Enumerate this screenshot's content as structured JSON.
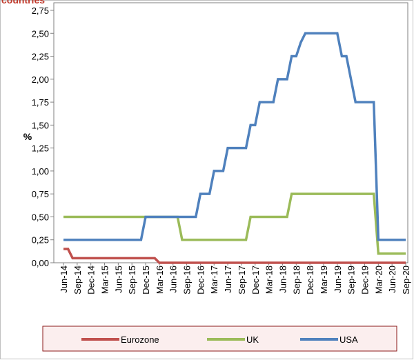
{
  "chart_data": {
    "type": "line",
    "title": "countries",
    "y_label": "%",
    "categories": [
      "Jun-14",
      null,
      null,
      "Sep-14",
      null,
      null,
      "Dec-14",
      null,
      null,
      "Mar-15",
      null,
      null,
      "Jun-15",
      null,
      null,
      "Sep-15",
      null,
      null,
      "Dec-15",
      null,
      null,
      "Mar-16",
      null,
      null,
      "Jun-16",
      null,
      null,
      "Sep-16",
      null,
      null,
      "Dec-16",
      null,
      null,
      "Mar-17",
      null,
      null,
      "Jun-17",
      null,
      null,
      "Sep-17",
      null,
      null,
      "Dec-17",
      null,
      null,
      "Mar-18",
      null,
      null,
      "Jun-18",
      null,
      null,
      "Sep-18",
      null,
      null,
      "Dec-18",
      null,
      null,
      "Mar-19",
      null,
      null,
      "Jun-19",
      null,
      null,
      "Sep-19",
      null,
      null,
      "Dec-19",
      null,
      null,
      "Mar-20",
      null,
      null,
      "Jun-20",
      null,
      null,
      "Sep-20"
    ],
    "series": [
      {
        "name": "Eurozone",
        "color": "#c0504d",
        "values": [
          0.15,
          0.15,
          0.05,
          0.05,
          0.05,
          0.05,
          0.05,
          0.05,
          0.05,
          0.05,
          0.05,
          0.05,
          0.05,
          0.05,
          0.05,
          0.05,
          0.05,
          0.05,
          0.05,
          0.05,
          0.05,
          0,
          0,
          0,
          0,
          0,
          0,
          0,
          0,
          0,
          0,
          0,
          0,
          0,
          0,
          0,
          0,
          0,
          0,
          0,
          0,
          0,
          0,
          0,
          0,
          0,
          0,
          0,
          0,
          0,
          0,
          0,
          0,
          0,
          0,
          0,
          0,
          0,
          0,
          0,
          0,
          0,
          0,
          0,
          0,
          0,
          0,
          0,
          0,
          0,
          0,
          0,
          0,
          0,
          0,
          0
        ]
      },
      {
        "name": "UK",
        "color": "#9bbb59",
        "values": [
          0.5,
          0.5,
          0.5,
          0.5,
          0.5,
          0.5,
          0.5,
          0.5,
          0.5,
          0.5,
          0.5,
          0.5,
          0.5,
          0.5,
          0.5,
          0.5,
          0.5,
          0.5,
          0.5,
          0.5,
          0.5,
          0.5,
          0.5,
          0.5,
          0.5,
          0.5,
          0.25,
          0.25,
          0.25,
          0.25,
          0.25,
          0.25,
          0.25,
          0.25,
          0.25,
          0.25,
          0.25,
          0.25,
          0.25,
          0.25,
          0.25,
          0.5,
          0.5,
          0.5,
          0.5,
          0.5,
          0.5,
          0.5,
          0.5,
          0.5,
          0.75,
          0.75,
          0.75,
          0.75,
          0.75,
          0.75,
          0.75,
          0.75,
          0.75,
          0.75,
          0.75,
          0.75,
          0.75,
          0.75,
          0.75,
          0.75,
          0.75,
          0.75,
          0.75,
          0.1,
          0.1,
          0.1,
          0.1,
          0.1,
          0.1,
          0.1
        ]
      },
      {
        "name": "USA",
        "color": "#4f81bd",
        "values": [
          0.25,
          0.25,
          0.25,
          0.25,
          0.25,
          0.25,
          0.25,
          0.25,
          0.25,
          0.25,
          0.25,
          0.25,
          0.25,
          0.25,
          0.25,
          0.25,
          0.25,
          0.25,
          0.5,
          0.5,
          0.5,
          0.5,
          0.5,
          0.5,
          0.5,
          0.5,
          0.5,
          0.5,
          0.5,
          0.5,
          0.75,
          0.75,
          0.75,
          1.0,
          1.0,
          1.0,
          1.25,
          1.25,
          1.25,
          1.25,
          1.25,
          1.5,
          1.5,
          1.75,
          1.75,
          1.75,
          1.75,
          2.0,
          2.0,
          2.0,
          2.25,
          2.25,
          2.4,
          2.5,
          2.5,
          2.5,
          2.5,
          2.5,
          2.5,
          2.5,
          2.5,
          2.25,
          2.25,
          2.0,
          1.75,
          1.75,
          1.75,
          1.75,
          1.75,
          0.25,
          0.25,
          0.25,
          0.25,
          0.25,
          0.25,
          0.25
        ]
      }
    ],
    "ylim": [
      0,
      2.75
    ],
    "yticks": [
      {
        "value": 0,
        "label": "0,00"
      },
      {
        "value": 0.25,
        "label": "0,25"
      },
      {
        "value": 0.5,
        "label": "0,50"
      },
      {
        "value": 0.75,
        "label": "0,75"
      },
      {
        "value": 1,
        "label": "1,00"
      },
      {
        "value": 1.25,
        "label": "1,25"
      },
      {
        "value": 1.5,
        "label": "1,50"
      },
      {
        "value": 1.75,
        "label": "1,75"
      },
      {
        "value": 2,
        "label": "2,00"
      },
      {
        "value": 2.25,
        "label": "2,25"
      },
      {
        "value": 2.5,
        "label": "2,50"
      },
      {
        "value": 2.75,
        "label": "2,75"
      }
    ],
    "grid": false
  }
}
